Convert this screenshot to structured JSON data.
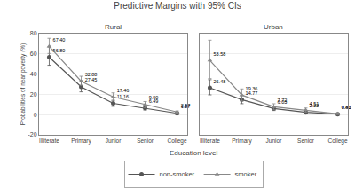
{
  "title": "Predictive Margins with 95% CIs",
  "xlabel": "Education level",
  "legend": "bottom",
  "chart_data": [
    {
      "type": "line",
      "title": "Rural",
      "ylabel": "Probabilities of near poverty (%)",
      "categories": [
        "Illiterate",
        "Primary",
        "Junior",
        "Senior",
        "College"
      ],
      "ylim": [
        -20,
        80
      ],
      "yticks": [
        -20,
        0,
        20,
        40,
        60,
        80
      ],
      "grid": true,
      "data_labels": true,
      "series": [
        {
          "name": "non-smoker",
          "color": "#555555",
          "marker": "circle",
          "line_style": "solid",
          "values": [
            56.8,
            27.45,
            11.16,
            6.49,
            1.27
          ],
          "value_labels": [
            "56.80",
            "27.45",
            "11.16",
            "6.49",
            "1.27"
          ],
          "error_upper": [
            10,
            6,
            3,
            2,
            1
          ],
          "error_lower": [
            8,
            5,
            3,
            2,
            1
          ]
        },
        {
          "name": "smoker",
          "color": "#888888",
          "marker": "triangle-up",
          "line_style": "solid",
          "values": [
            67.4,
            32.88,
            17.46,
            9.9,
            2.57
          ],
          "value_labels": [
            "67.40",
            "32.88",
            "17.46",
            "9.90",
            "2.57"
          ],
          "error_upper": [
            8,
            5,
            4,
            3,
            1
          ],
          "error_lower": [
            7,
            4,
            4,
            3,
            1
          ]
        }
      ]
    },
    {
      "type": "line",
      "title": "Urban",
      "categories": [
        "Illiterate",
        "Primary",
        "Junior",
        "Senior",
        "College"
      ],
      "ylim": [
        -20,
        80
      ],
      "yticks": [
        -20,
        0,
        20,
        40,
        60,
        80
      ],
      "grid": true,
      "data_labels": true,
      "tick_labels": "x",
      "series": [
        {
          "name": "non-smoker",
          "color": "#555555",
          "marker": "circle",
          "line_style": "solid",
          "values": [
            26.48,
            14.77,
            6.03,
            2.22,
            0.43
          ],
          "value_labels": [
            "26.48",
            "14.77",
            "6.03",
            "2.22",
            "0.43"
          ],
          "error_upper": [
            8,
            4,
            2,
            1,
            0.5
          ],
          "error_lower": [
            7,
            4,
            2,
            1,
            0.5
          ]
        },
        {
          "name": "smoker",
          "color": "#888888",
          "marker": "triangle-up",
          "line_style": "solid",
          "values": [
            53.58,
            19.36,
            7.72,
            4.51,
            0.81
          ],
          "value_labels": [
            "53.58",
            "19.36",
            "7.72",
            "4.51",
            "0.81"
          ],
          "error_upper": [
            20,
            6,
            3,
            2,
            0.5
          ],
          "error_lower": [
            18,
            6,
            3,
            2,
            0.5
          ]
        }
      ]
    }
  ]
}
